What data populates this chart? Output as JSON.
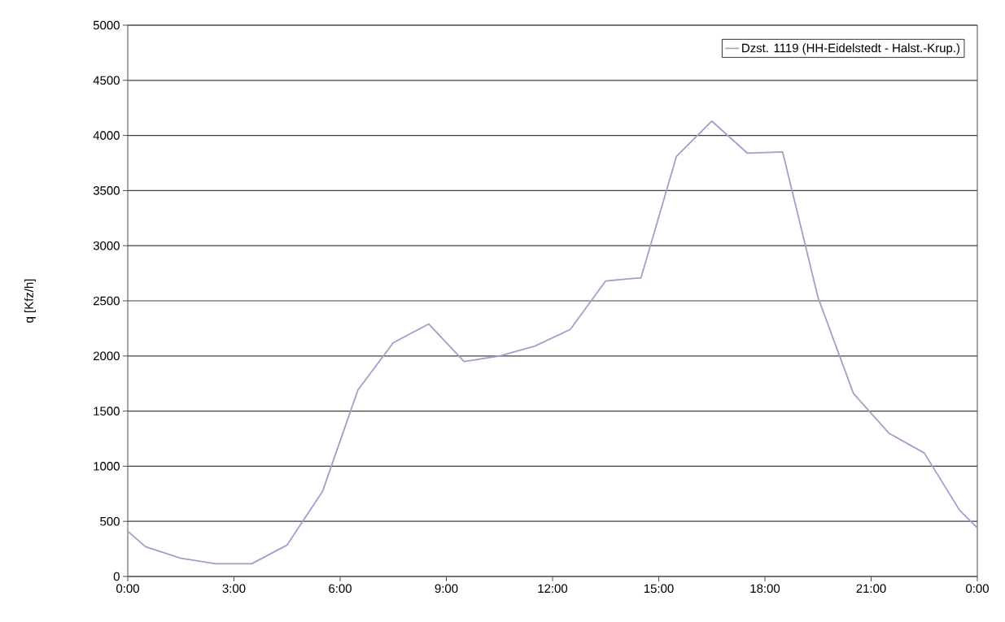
{
  "chart_data": {
    "type": "line",
    "ylabel": "q [Kfz/h]",
    "x": [
      0,
      0.5,
      1.5,
      2.5,
      3.5,
      4.5,
      5.5,
      6.5,
      7.5,
      8.5,
      9.5,
      10.5,
      11.5,
      12.5,
      13.5,
      14.5,
      15.5,
      16.5,
      17.5,
      18.5,
      19.5,
      20.5,
      21.5,
      22.5,
      23.5,
      24
    ],
    "series": [
      {
        "name": "Dzst. 1119 (HH-Eidelstedt - Halst.-Krup.)",
        "color": "#a99bc8",
        "values": [
          410,
          270,
          165,
          115,
          115,
          285,
          770,
          1690,
          2120,
          2290,
          1950,
          2000,
          2090,
          2240,
          2680,
          2710,
          3810,
          4130,
          3840,
          3850,
          2530,
          1660,
          1300,
          1120,
          600,
          440
        ]
      }
    ],
    "xlim": [
      0,
      24
    ],
    "xticks": [
      {
        "value": 0,
        "label": "0:00"
      },
      {
        "value": 3,
        "label": "3:00"
      },
      {
        "value": 6,
        "label": "6:00"
      },
      {
        "value": 9,
        "label": "9:00"
      },
      {
        "value": 12,
        "label": "12:00"
      },
      {
        "value": 15,
        "label": "15:00"
      },
      {
        "value": 18,
        "label": "18:00"
      },
      {
        "value": 21,
        "label": "21:00"
      },
      {
        "value": 24,
        "label": "0:00"
      }
    ],
    "ylim": [
      0,
      5000
    ],
    "yticks": [
      0,
      500,
      1000,
      1500,
      2000,
      2500,
      3000,
      3500,
      4000,
      4500,
      5000
    ],
    "grid": "y",
    "legend": "top right",
    "marker": "none",
    "line_style": "solid"
  }
}
